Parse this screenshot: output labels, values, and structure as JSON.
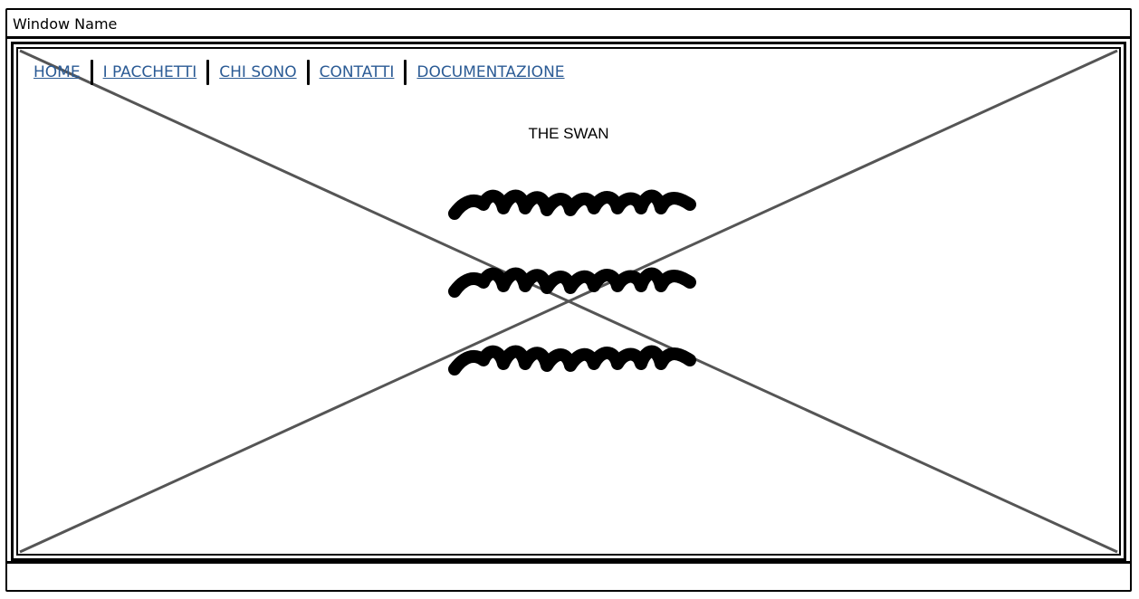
{
  "window": {
    "title": "Window Name"
  },
  "nav": {
    "items": [
      {
        "label": "HOME"
      },
      {
        "label": "I PACCHETTI"
      },
      {
        "label": "CHI SONO"
      },
      {
        "label": "CONTATTI"
      },
      {
        "label": "DOCUMENTAZIONE"
      }
    ]
  },
  "main": {
    "brand": "THE SWAN",
    "scribble_lines": 3,
    "placeholder_icon": "image-placeholder-x-icon"
  },
  "colors": {
    "link": "#2b5b95",
    "border": "#000000",
    "placeholder_lines": "#555555"
  }
}
